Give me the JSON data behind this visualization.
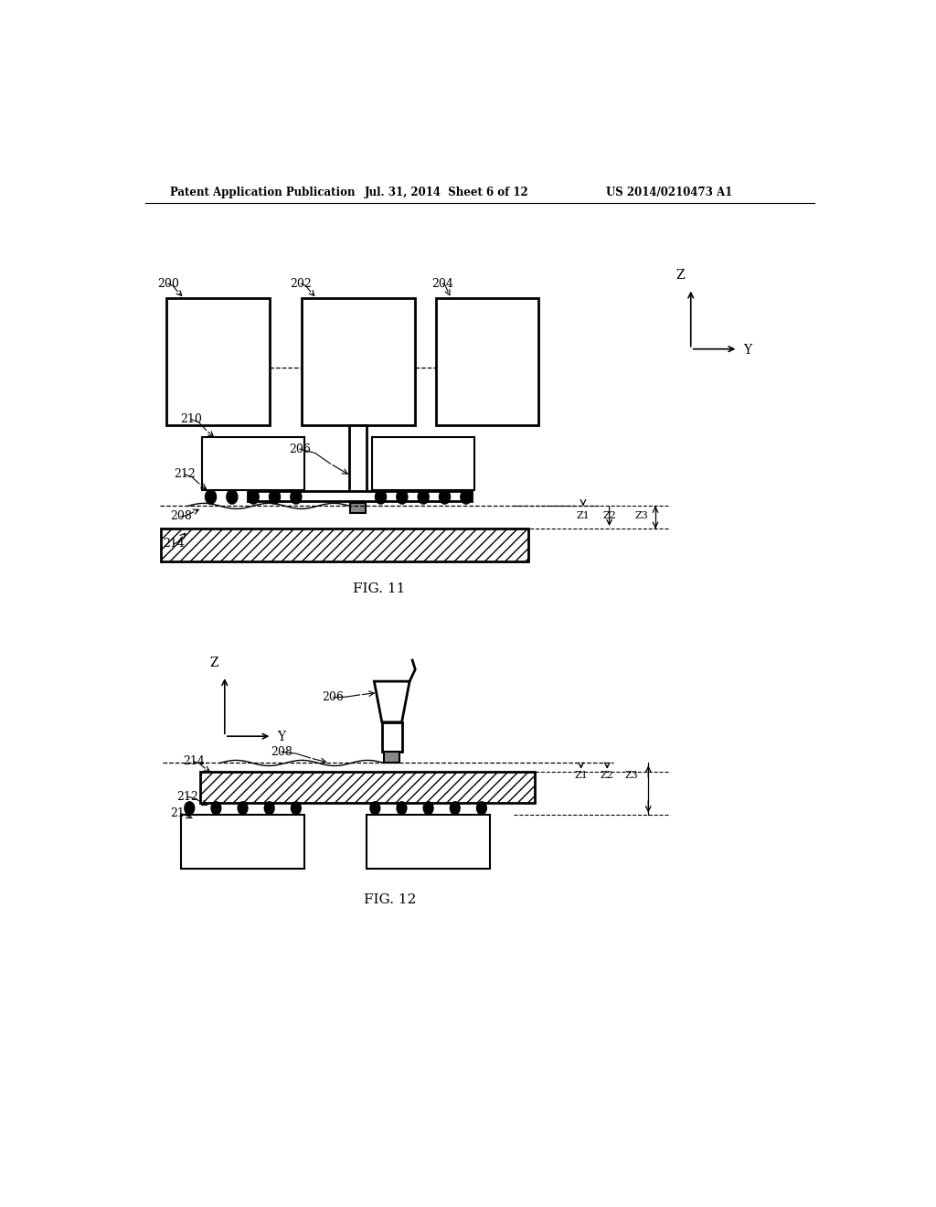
{
  "bg_color": "#ffffff",
  "header_left": "Patent Application Publication",
  "header_mid": "Jul. 31, 2014  Sheet 6 of 12",
  "header_right": "US 2014/0210473 A1",
  "fig11_label": "FIG. 11",
  "fig12_label": "FIG. 12"
}
